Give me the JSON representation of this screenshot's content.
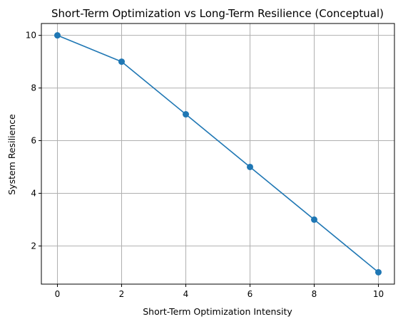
{
  "chart_data": {
    "type": "line",
    "title": "Short-Term Optimization vs Long-Term Resilience (Conceptual)",
    "xlabel": "Short-Term Optimization Intensity",
    "ylabel": "System Resilience",
    "x": [
      0,
      2,
      4,
      6,
      8,
      10
    ],
    "series": [
      {
        "values": [
          10,
          9,
          7,
          5,
          3,
          1
        ],
        "color": "#1f77b4",
        "marker": "circle"
      }
    ],
    "xlim": [
      -0.5,
      10.5
    ],
    "ylim": [
      0.55,
      10.45
    ],
    "xticks": [
      0,
      2,
      4,
      6,
      8,
      10
    ],
    "yticks": [
      2,
      4,
      6,
      8,
      10
    ],
    "grid": true
  }
}
